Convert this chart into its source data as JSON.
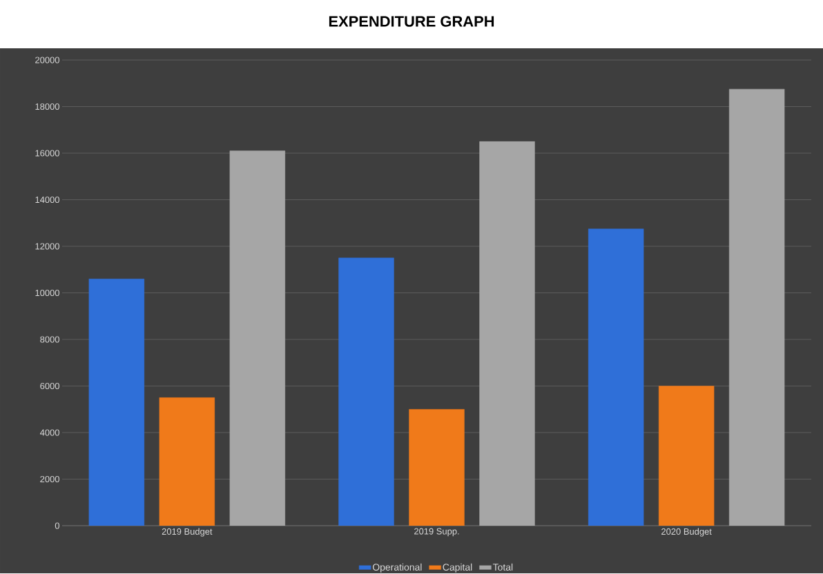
{
  "chart_data": {
    "type": "bar",
    "title": "EXPENDITURE GRAPH",
    "categories": [
      "2019 Budget",
      "2019 Supp.",
      "2020 Budget"
    ],
    "series": [
      {
        "name": "Operational",
        "color": "#2f6fd8",
        "values": [
          10600,
          11500,
          12750
        ]
      },
      {
        "name": "Capital",
        "color": "#f07a1a",
        "values": [
          5500,
          5000,
          6000
        ]
      },
      {
        "name": "Total",
        "color": "#a6a6a6",
        "values": [
          16100,
          16500,
          18750
        ]
      }
    ],
    "ylim": [
      0,
      20000
    ],
    "yticks": [
      0,
      2000,
      4000,
      6000,
      8000,
      10000,
      12000,
      14000,
      16000,
      18000,
      20000
    ],
    "grid": "y",
    "legend": "bottom"
  }
}
